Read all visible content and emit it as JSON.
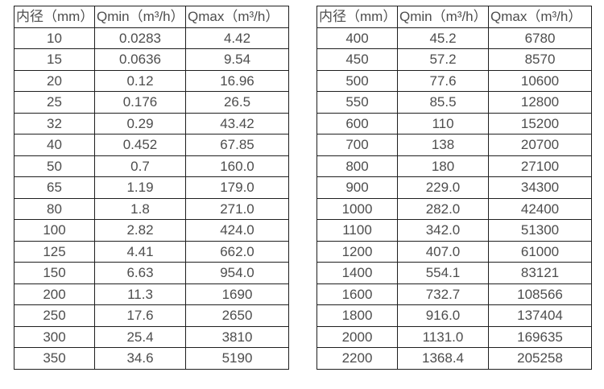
{
  "page": {
    "colors": {
      "background": "#ffffff",
      "border": "#1f1f1f",
      "text": "#4d4d4d"
    }
  },
  "chart_data": [
    {
      "type": "table",
      "title": "",
      "columns": [
        "内径（mm）",
        "Qmin（m³/h）",
        "Qmax（m³/h）"
      ],
      "rows": [
        [
          "10",
          "0.0283",
          "4.42"
        ],
        [
          "15",
          "0.0636",
          "9.54"
        ],
        [
          "20",
          "0.12",
          "16.96"
        ],
        [
          "25",
          "0.176",
          "26.5"
        ],
        [
          "32",
          "0.29",
          "43.42"
        ],
        [
          "40",
          "0.452",
          "67.85"
        ],
        [
          "50",
          "0.7",
          "160.0"
        ],
        [
          "65",
          "1.19",
          "179.0"
        ],
        [
          "80",
          "1.8",
          "271.0"
        ],
        [
          "100",
          "2.82",
          "424.0"
        ],
        [
          "125",
          "4.41",
          "662.0"
        ],
        [
          "150",
          "6.63",
          "954.0"
        ],
        [
          "200",
          "11.3",
          "1690"
        ],
        [
          "250",
          "17.6",
          "2650"
        ],
        [
          "300",
          "25.4",
          "3810"
        ],
        [
          "350",
          "34.6",
          "5190"
        ]
      ]
    },
    {
      "type": "table",
      "title": "",
      "columns": [
        "内径（mm）",
        "Qmin（m³/h）",
        "Qmax（m³/h）"
      ],
      "rows": [
        [
          "400",
          "45.2",
          "6780"
        ],
        [
          "450",
          "57.2",
          "8570"
        ],
        [
          "500",
          "77.6",
          "10600"
        ],
        [
          "550",
          "85.5",
          "12800"
        ],
        [
          "600",
          "110",
          "15200"
        ],
        [
          "700",
          "138",
          "20700"
        ],
        [
          "800",
          "180",
          "27100"
        ],
        [
          "900",
          "229.0",
          "34300"
        ],
        [
          "1000",
          "282.0",
          "42400"
        ],
        [
          "1100",
          "342.0",
          "51300"
        ],
        [
          "1200",
          "407.0",
          "61000"
        ],
        [
          "1400",
          "554.1",
          "83121"
        ],
        [
          "1600",
          "732.7",
          "108566"
        ],
        [
          "1800",
          "916.0",
          "137404"
        ],
        [
          "2000",
          "1131.0",
          "169635"
        ],
        [
          "2200",
          "1368.4",
          "205258"
        ]
      ]
    }
  ]
}
